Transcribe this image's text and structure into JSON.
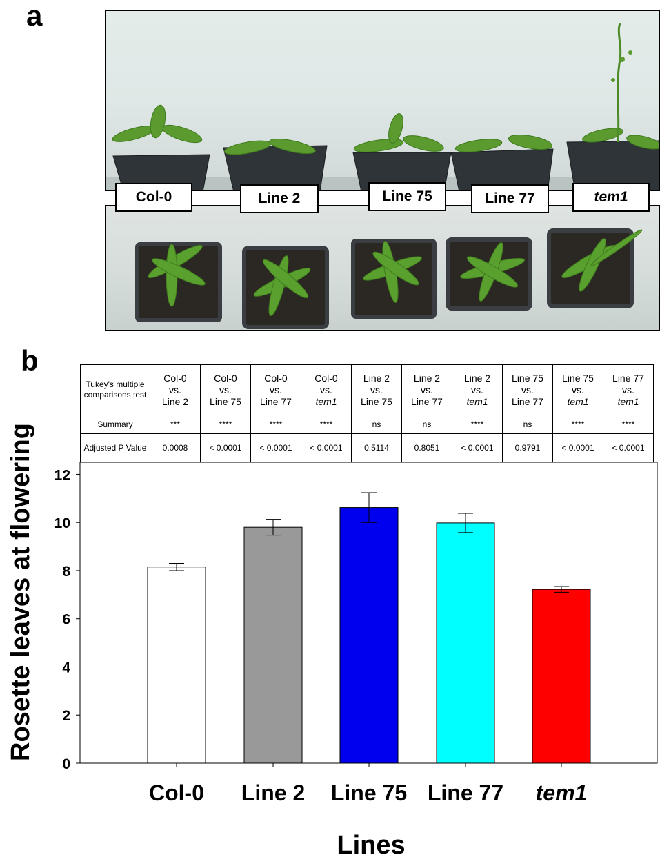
{
  "panels": {
    "a": "a",
    "b": "b"
  },
  "photo_labels": [
    {
      "text": "Col-0",
      "italic": false
    },
    {
      "text": "Line 2",
      "italic": false
    },
    {
      "text": "Line 75",
      "italic": false
    },
    {
      "text": "Line 77",
      "italic": false
    },
    {
      "text": "tem1",
      "italic": true
    }
  ],
  "table": {
    "row_headers": {
      "test": "Tukey's multiple comparisons test",
      "summary": "Summary",
      "p_value": "Adjusted P Value"
    },
    "comparisons": [
      {
        "a": "Col-0",
        "vs": "vs.",
        "b": "Line 2",
        "b_italic": false,
        "summary": "***",
        "p": "0.0008"
      },
      {
        "a": "Col-0",
        "vs": "vs.",
        "b": "Line 75",
        "b_italic": false,
        "summary": "****",
        "p": "< 0.0001"
      },
      {
        "a": "Col-0",
        "vs": "vs.",
        "b": "Line 77",
        "b_italic": false,
        "summary": "****",
        "p": "< 0.0001"
      },
      {
        "a": "Col-0",
        "vs": "vs.",
        "b": "tem1",
        "b_italic": true,
        "summary": "****",
        "p": "< 0.0001"
      },
      {
        "a": "Line 2",
        "vs": "vs.",
        "b": "Line 75",
        "b_italic": false,
        "summary": "ns",
        "p": "0.5114"
      },
      {
        "a": "Line 2",
        "vs": "vs.",
        "b": "Line 77",
        "b_italic": false,
        "summary": "ns",
        "p": "0.8051"
      },
      {
        "a": "Line 2",
        "vs": "vs.",
        "b": "tem1",
        "b_italic": true,
        "summary": "****",
        "p": "< 0.0001"
      },
      {
        "a": "Line 75",
        "vs": "vs.",
        "b": "Line 77",
        "b_italic": false,
        "summary": "ns",
        "p": "0.9791"
      },
      {
        "a": "Line 75",
        "vs": "vs.",
        "b": "tem1",
        "b_italic": true,
        "summary": "****",
        "p": "< 0.0001"
      },
      {
        "a": "Line 77",
        "vs": "vs.",
        "b": "tem1",
        "b_italic": true,
        "summary": "****",
        "p": "< 0.0001"
      }
    ]
  },
  "chart_data": {
    "type": "bar",
    "categories": [
      "Col-0",
      "Line 2",
      "Line 75",
      "Line 77",
      "tem1"
    ],
    "categories_italic": [
      false,
      false,
      false,
      false,
      true
    ],
    "values": [
      8.15,
      9.8,
      10.62,
      9.98,
      7.22
    ],
    "errors": [
      0.15,
      0.33,
      0.62,
      0.4,
      0.12
    ],
    "colors": [
      "#ffffff",
      "#999999",
      "#0000ee",
      "#00ffff",
      "#ff0000"
    ],
    "xlabel": "Lines",
    "ylabel": "Rosette leaves at flowering",
    "ylim": [
      0,
      12
    ],
    "yticks": [
      0,
      2,
      4,
      6,
      8,
      10,
      12
    ],
    "grid": false
  }
}
